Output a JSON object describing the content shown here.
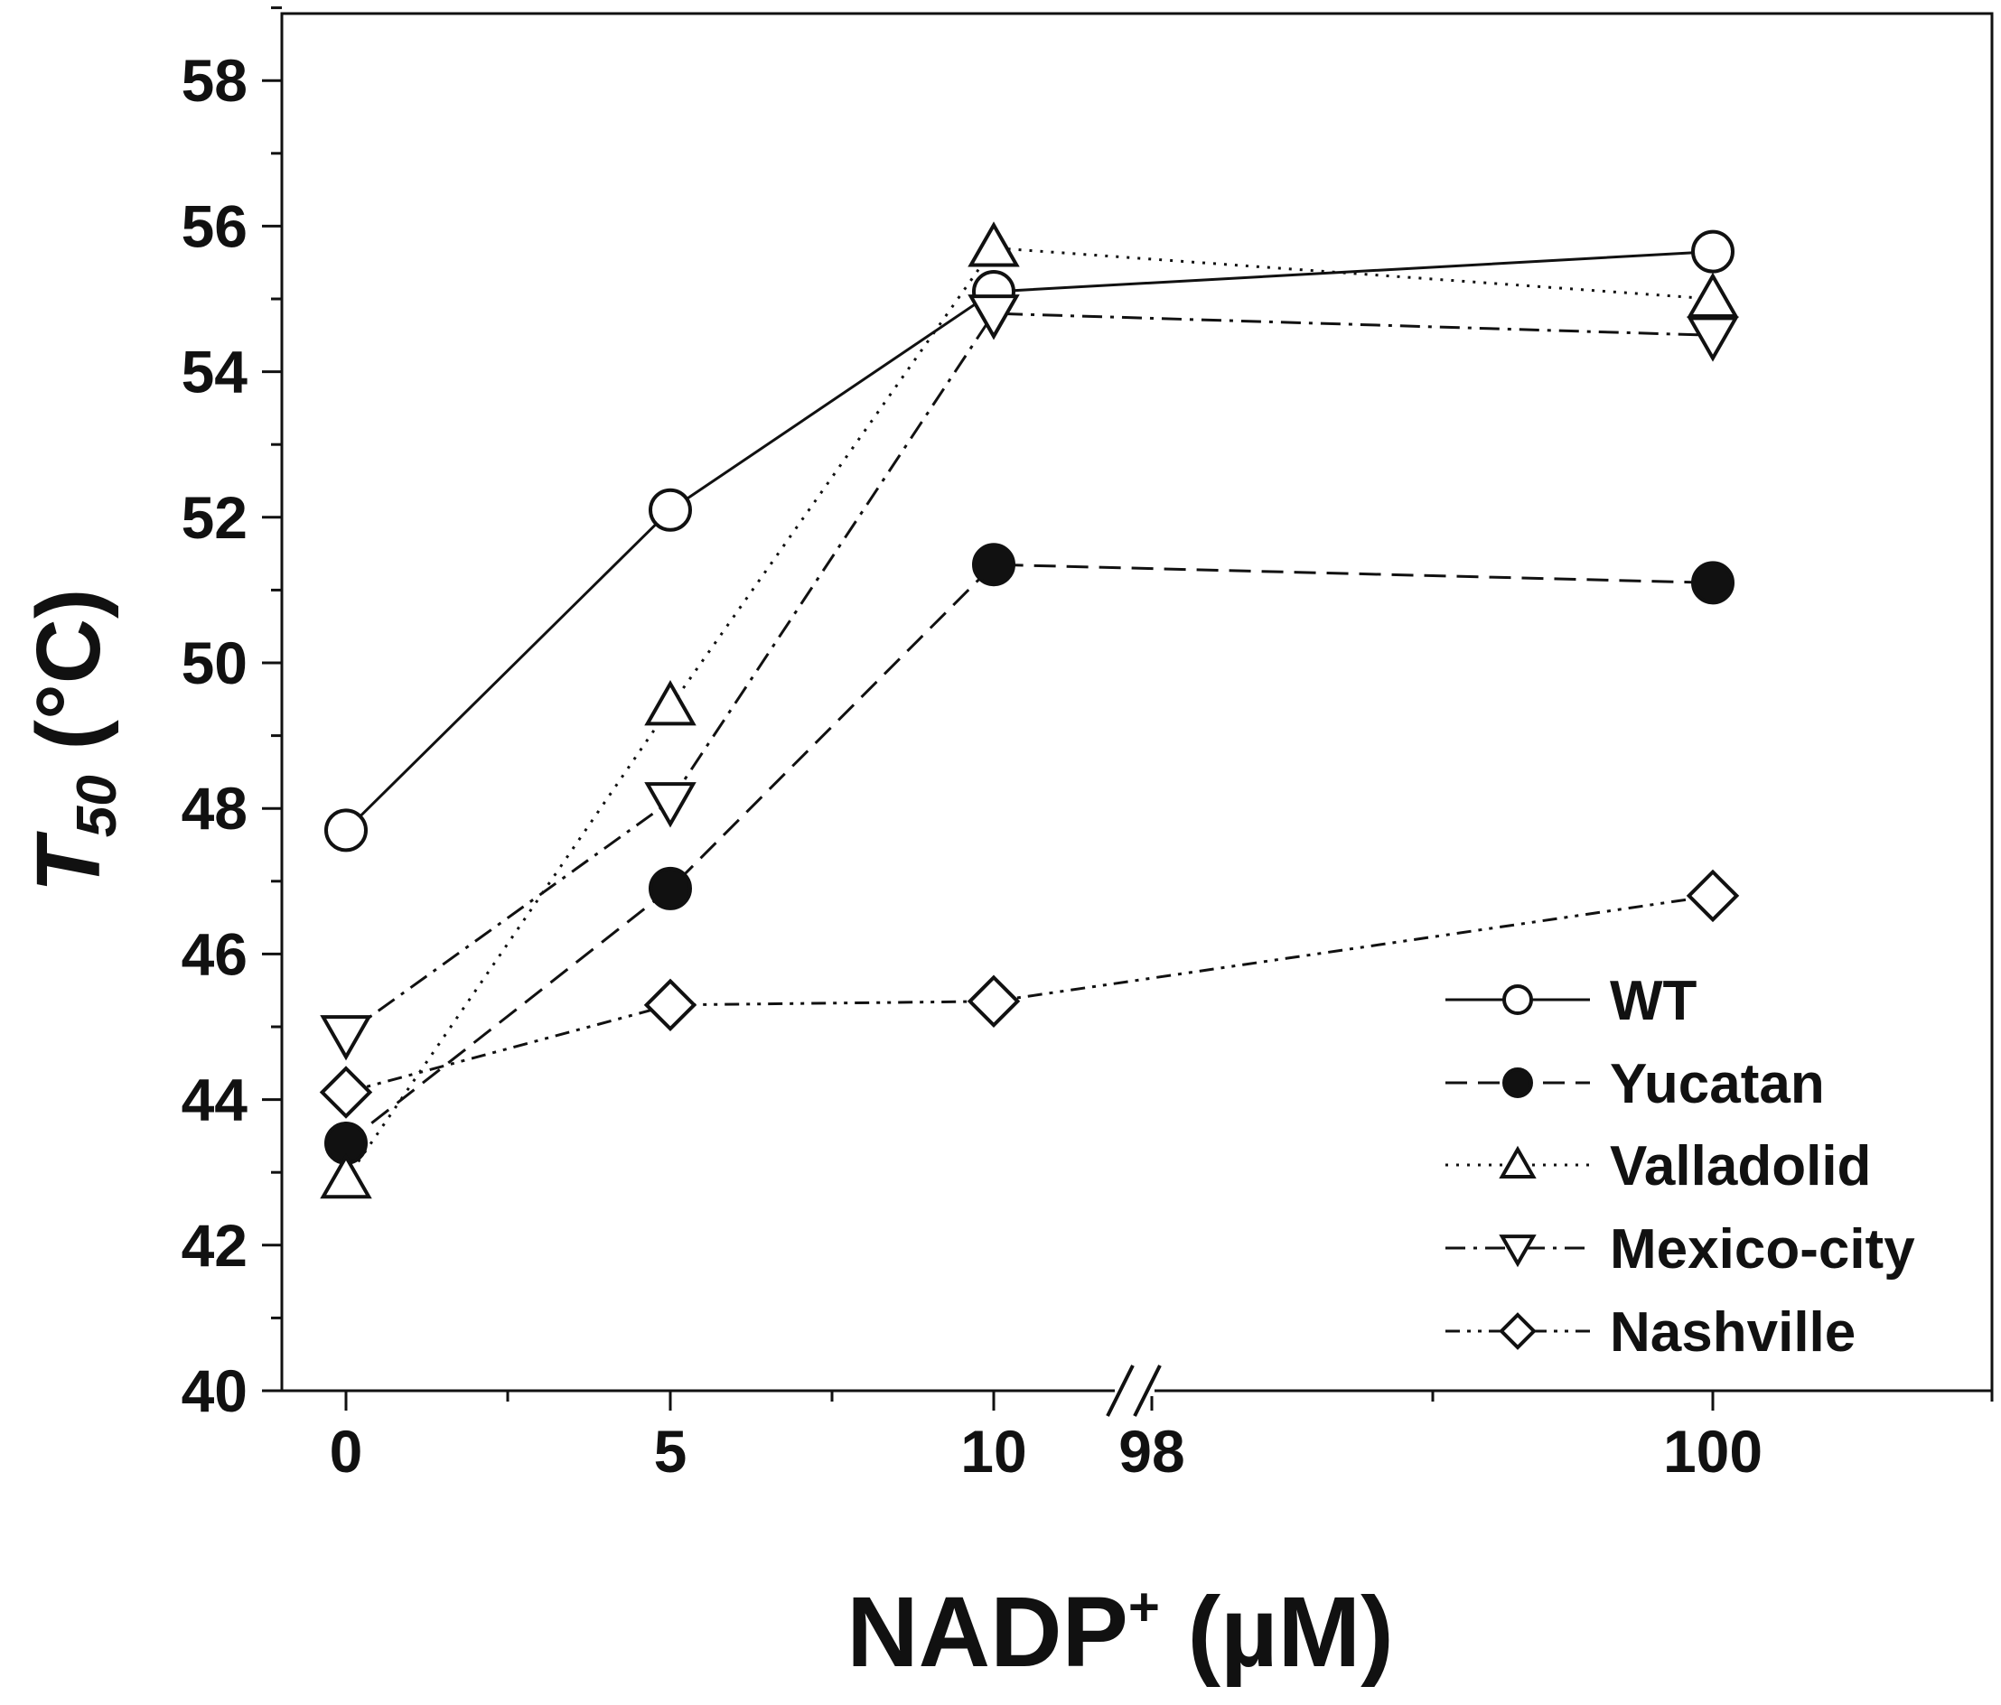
{
  "chart_data": {
    "type": "line",
    "title": "",
    "xlabel": {
      "main": "NADP",
      "sup": "+",
      "unit": " (µM)"
    },
    "ylabel": {
      "main": "T",
      "sub": "50",
      "unit": " (°C)"
    },
    "ylim": [
      40,
      59
    ],
    "yticks": [
      "40",
      "42",
      "44",
      "46",
      "48",
      "50",
      "52",
      "54",
      "56",
      "58"
    ],
    "x": [
      0,
      5,
      10,
      100
    ],
    "xticks": [
      "0",
      "5",
      "10",
      "98",
      "100"
    ],
    "axis_break": "between 10 and 98",
    "legend_position": "bottom-right",
    "series": [
      {
        "name": "WT",
        "marker": "circle-open",
        "line": "solid",
        "values": [
          47.7,
          52.1,
          55.1,
          55.65
        ]
      },
      {
        "name": "Yucatan",
        "marker": "circle-filled",
        "line": "dashed",
        "values": [
          43.4,
          46.9,
          51.35,
          51.1
        ]
      },
      {
        "name": "Valladolid",
        "marker": "triangle-up-open",
        "line": "dotted",
        "values": [
          42.9,
          49.4,
          55.7,
          55.0
        ]
      },
      {
        "name": "Mexico-city",
        "marker": "triangle-down-open",
        "line": "dash-dot",
        "values": [
          44.9,
          48.1,
          54.8,
          54.5
        ]
      },
      {
        "name": "Nashville",
        "marker": "diamond-open",
        "line": "dash-dot-dot",
        "values": [
          44.1,
          45.3,
          45.35,
          46.8
        ]
      }
    ]
  }
}
